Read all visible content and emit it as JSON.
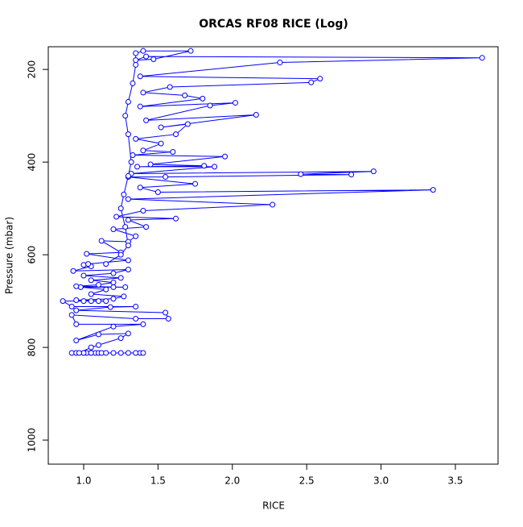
{
  "chart_data": {
    "type": "line",
    "title": "ORCAS RF08 RICE (Log)",
    "x_label": "RICE",
    "y_label": "Pressure (mbar)",
    "color": "#0000ff",
    "x": [
      0.92,
      0.95,
      1.0,
      1.02,
      1.05,
      1.08,
      1.1,
      1.12,
      1.15,
      1.2,
      1.25,
      1.3,
      1.35,
      1.38,
      1.4,
      1.05,
      1.0,
      0.97,
      1.05,
      1.1,
      1.25,
      1.3,
      1.1,
      0.95,
      1.2,
      1.4,
      0.95,
      0.92,
      1.35,
      1.57,
      1.55,
      0.95,
      1.18,
      1.35,
      0.92,
      0.86,
      1.0,
      1.05,
      1.1,
      1.15,
      0.95,
      1.2,
      1.27,
      1.05,
      1.15,
      0.98,
      1.2,
      1.28,
      0.95,
      1.1,
      1.2,
      1.05,
      1.25,
      1.0,
      1.2,
      1.3,
      0.93,
      1.05,
      1.0,
      1.03,
      1.3,
      1.02,
      1.25,
      1.12,
      1.3,
      1.35,
      1.2,
      1.42,
      1.3,
      1.62,
      1.22,
      1.4,
      2.27,
      1.3,
      3.35,
      1.5,
      1.38,
      1.75,
      1.3,
      1.55,
      2.8,
      2.46,
      2.95,
      1.32,
      1.88,
      1.36,
      1.81,
      1.45,
      1.95,
      1.33,
      1.6,
      1.4,
      1.52,
      1.35,
      1.62,
      1.7,
      1.52,
      2.16,
      1.42,
      1.85,
      2.02,
      1.38,
      1.8,
      1.68,
      1.4,
      1.58,
      2.53,
      2.59,
      1.38,
      2.32,
      3.68,
      1.42,
      1.35,
      1.47,
      1.72,
      1.4,
      1.35,
      1.35,
      1.33,
      1.3,
      1.28,
      1.3,
      1.32,
      1.3,
      1.27,
      1.25,
      1.28,
      1.3,
      1.25,
      1.15
    ],
    "values": [
      812,
      812,
      812,
      812,
      812,
      812,
      812,
      812,
      812,
      812,
      812,
      812,
      812,
      812,
      812,
      812,
      812,
      812,
      800,
      795,
      780,
      770,
      772,
      785,
      755,
      750,
      750,
      730,
      738,
      738,
      725,
      720,
      713,
      712,
      712,
      700,
      700,
      700,
      700,
      700,
      698,
      695,
      690,
      685,
      675,
      670,
      670,
      670,
      668,
      665,
      660,
      655,
      650,
      645,
      640,
      632,
      635,
      625,
      622,
      620,
      612,
      598,
      595,
      570,
      572,
      560,
      545,
      540,
      525,
      522,
      518,
      505,
      492,
      480,
      460,
      465,
      455,
      447,
      432,
      432,
      427,
      426,
      420,
      425,
      410,
      410,
      408,
      405,
      388,
      385,
      378,
      375,
      360,
      350,
      340,
      318,
      325,
      298,
      310,
      278,
      272,
      280,
      263,
      256,
      250,
      238,
      228,
      220,
      215,
      185,
      175,
      172,
      180,
      178,
      160,
      160,
      165,
      190,
      230,
      270,
      300,
      340,
      400,
      430,
      470,
      500,
      540,
      580,
      600,
      620
    ],
    "xlim": [
      0.762,
      3.787
    ],
    "ylim": [
      1052,
      151
    ],
    "xticks": [
      {
        "value": 1,
        "label": "1.0"
      },
      1.5,
      {
        "value": 2,
        "label": "2.0"
      },
      2.5,
      {
        "value": 3,
        "label": "3.0"
      },
      3.5
    ],
    "yticks": [
      200,
      400,
      600,
      800,
      1000
    ]
  }
}
